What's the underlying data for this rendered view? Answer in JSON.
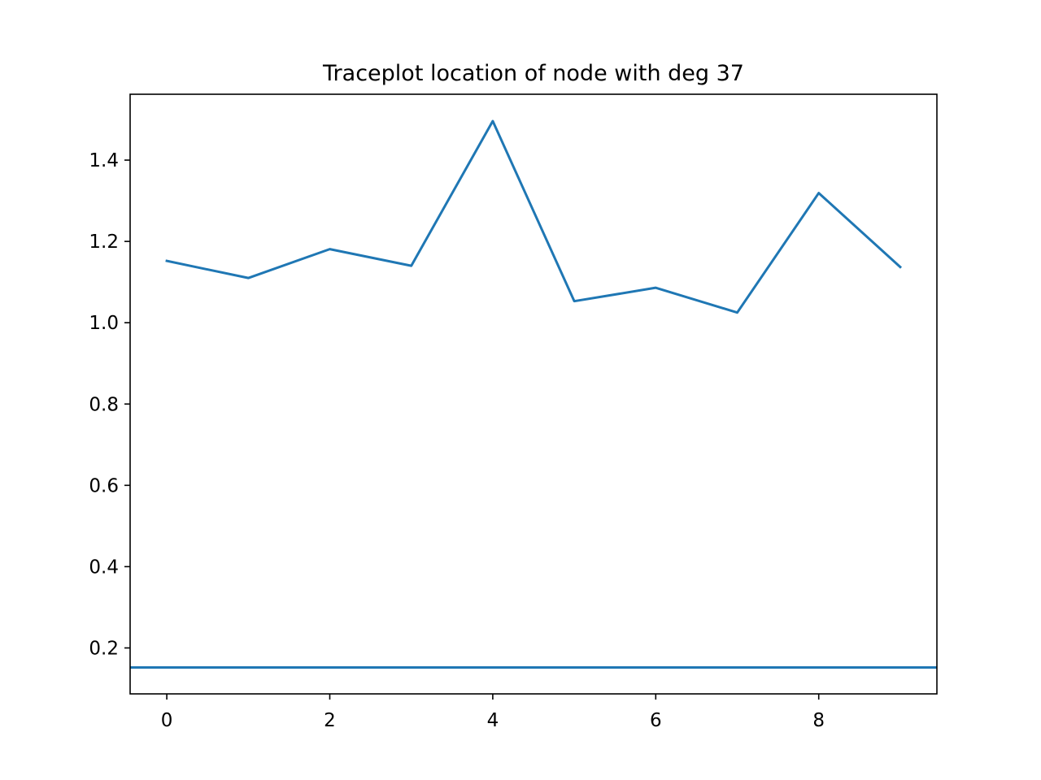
{
  "chart_data": {
    "type": "line",
    "title": "Traceplot location of node with deg 37",
    "xlabel": "",
    "ylabel": "",
    "xlim": [
      -0.45,
      9.45
    ],
    "ylim": [
      0.087,
      1.562
    ],
    "x_ticks": [
      0,
      2,
      4,
      6,
      8
    ],
    "x_tick_labels": [
      "0",
      "2",
      "4",
      "6",
      "8"
    ],
    "y_ticks": [
      0.2,
      0.4,
      0.6,
      0.8,
      1.0,
      1.2,
      1.4
    ],
    "y_tick_labels": [
      "0.2",
      "0.4",
      "0.6",
      "0.8",
      "1.0",
      "1.2",
      "1.4"
    ],
    "grid": false,
    "legend": "none",
    "series": [
      {
        "color": "#1f77b4",
        "x": [
          0,
          1,
          2,
          3,
          4,
          5,
          6,
          7,
          8,
          9
        ],
        "values": [
          1.152,
          1.11,
          1.181,
          1.14,
          1.496,
          1.053,
          1.086,
          1.025,
          1.319,
          1.137
        ]
      }
    ],
    "hlines": [
      {
        "y": 0.152,
        "color": "#1f77b4"
      }
    ]
  }
}
